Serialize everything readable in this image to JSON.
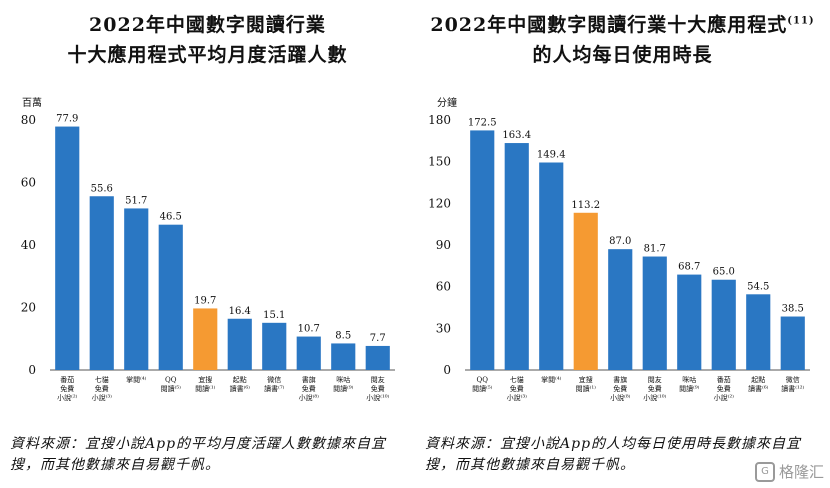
{
  "watermark": {
    "text": "格隆汇",
    "icon": "G"
  },
  "charts": [
    {
      "title_line1": "2022年中國數字閱讀行業",
      "title_line2": "十大應用程式平均月度活躍人數",
      "title_sup": "",
      "source_note": "資料來源：宜搜小說App的平均月度活躍人數數據來自宜搜，而其他數據來自易觀千帆。",
      "chart_data": {
        "type": "bar",
        "unit_label": "百萬",
        "ylim": [
          0,
          80
        ],
        "yticks": [
          0,
          20,
          40,
          60,
          80
        ],
        "categories": [
          [
            "番茄",
            "免費",
            "小說⁽²⁾"
          ],
          [
            "七貓",
            "免費",
            "小說⁽³⁾"
          ],
          [
            "掌閱⁽⁴⁾"
          ],
          [
            "QQ",
            "閱讀⁽⁵⁾"
          ],
          [
            "宜搜",
            "閱讀⁽¹⁾"
          ],
          [
            "起點",
            "讀書⁽⁶⁾"
          ],
          [
            "微信",
            "讀書⁽⁷⁾"
          ],
          [
            "書旗",
            "免費",
            "小說⁽⁸⁾"
          ],
          [
            "咪咕",
            "閱讀⁽⁹⁾"
          ],
          [
            "閱友",
            "免費",
            "小說⁽¹⁰⁾"
          ]
        ],
        "values": [
          77.9,
          55.6,
          51.7,
          46.5,
          19.7,
          16.4,
          15.1,
          10.7,
          8.5,
          7.7
        ],
        "highlight_index": 4,
        "colors": {
          "bar": "#2a77c3",
          "highlight": "#f59a32"
        }
      }
    },
    {
      "title_line1": "2022年中國數字閱讀行業十大應用程式",
      "title_line2": "的人均每日使用時長",
      "title_sup": "(11)",
      "source_note": "資料來源：宜搜小說App的人均每日使用時長數據來自宜搜，而其他數據來自易觀千帆。",
      "chart_data": {
        "type": "bar",
        "unit_label": "分鐘",
        "ylim": [
          0,
          180
        ],
        "yticks": [
          0,
          30,
          60,
          90,
          120,
          150,
          180
        ],
        "categories": [
          [
            "QQ",
            "閱讀⁽⁵⁾"
          ],
          [
            "七貓",
            "免費",
            "小說⁽³⁾"
          ],
          [
            "掌閱⁽⁴⁾"
          ],
          [
            "宜搜",
            "閱讀⁽¹⁾"
          ],
          [
            "書旗",
            "免費",
            "小說⁽⁸⁾"
          ],
          [
            "閱友",
            "免費",
            "小說⁽¹⁰⁾"
          ],
          [
            "咪咕",
            "閱讀⁽⁹⁾"
          ],
          [
            "番茄",
            "免費",
            "小說⁽²⁾"
          ],
          [
            "起點",
            "讀書⁽⁶⁾"
          ],
          [
            "微信",
            "讀書⁽¹²⁾"
          ]
        ],
        "values": [
          172.5,
          163.4,
          149.4,
          113.2,
          87.0,
          81.7,
          68.7,
          65.0,
          54.5,
          38.5
        ],
        "highlight_index": 3,
        "colors": {
          "bar": "#2a77c3",
          "highlight": "#f59a32"
        }
      }
    }
  ]
}
